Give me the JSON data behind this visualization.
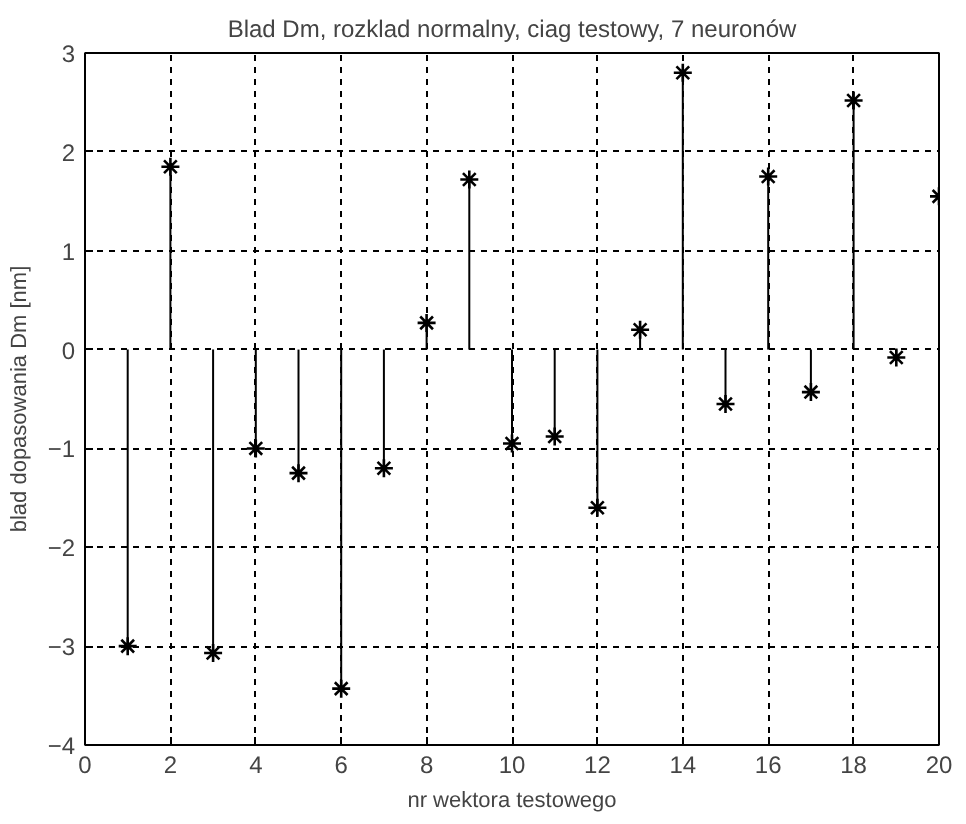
{
  "chart_data": {
    "type": "lollipop",
    "title": "Blad Dm, rozklad normalny, ciag testowy, 7 neuronów",
    "xlabel": "nr wektora testowego",
    "ylabel": "blad dopasowania Dm [nm]",
    "x": [
      1,
      2,
      3,
      4,
      5,
      6,
      7,
      8,
      9,
      10,
      11,
      12,
      13,
      14,
      15,
      16,
      17,
      18,
      19,
      20
    ],
    "series": [
      {
        "color": "#000000",
        "values": [
          -3.0,
          1.85,
          -3.07,
          -1.0,
          -1.25,
          -3.43,
          -1.2,
          0.27,
          1.72,
          -0.95,
          -0.88,
          -1.6,
          0.2,
          2.8,
          -0.55,
          1.75,
          -0.43,
          2.52,
          -0.08,
          1.55
        ]
      }
    ],
    "xlim": [
      0,
      20
    ],
    "ylim": [
      -4,
      3
    ],
    "xticks": [
      0,
      2,
      4,
      6,
      8,
      10,
      12,
      14,
      16,
      18,
      20
    ],
    "yticks": [
      -4,
      -3,
      -2,
      -1,
      0,
      1,
      2,
      3
    ],
    "grid": true,
    "marker": "cross",
    "line_style": "solid"
  }
}
